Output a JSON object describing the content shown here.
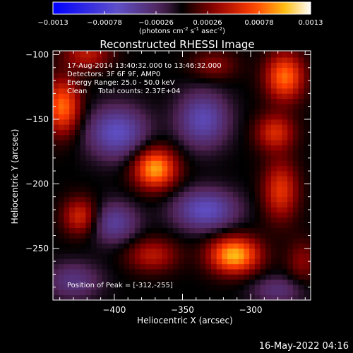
{
  "colorbar": {
    "min": -0.0013,
    "max": 0.0013,
    "tick_labels": [
      "-0.0013",
      "-0.00078",
      "-0.00026",
      "0.00026",
      "0.00078",
      "0.0013"
    ],
    "unit_prefix": "(photons cm",
    "unit_exp1": "-2",
    "unit_mid": " s",
    "unit_exp2": "-1",
    "unit_mid2": " asec",
    "unit_exp3": "-2",
    "unit_suffix": ")"
  },
  "annotations": {
    "line1": "17-Aug-2014 13:40:32.000 to 13:46:32.000",
    "line2": "Detectors: 3F 6F 9F, AMP0",
    "line3": "Energy Range: 25.0 - 50.0 keV",
    "line4": "Clean     Total counts: 2.37E+04",
    "peak": "Position of Peak = [-312,-255]"
  },
  "footer": {
    "timestamp": "16-May-2022 04:16"
  },
  "chart_data": {
    "type": "heatmap",
    "title": "Reconstructed RHESSI Image",
    "xlabel": "Heliocentric X (arcsec)",
    "ylabel": "Heliocentric Y (arcsec)",
    "xlim": [
      -445,
      -256
    ],
    "ylim": [
      -290,
      -97
    ],
    "xticks": [
      -400,
      -350,
      -300
    ],
    "yticks": [
      -100,
      -150,
      -200,
      -250
    ],
    "colormap": "blue-white-red-yellow",
    "peak_position": [
      -312,
      -255
    ],
    "grid_step_arcsec": 4,
    "sources": [
      {
        "kind": "emission",
        "x": -312,
        "y": -255,
        "amp": 1.0,
        "sx": 13,
        "sy": 10
      },
      {
        "kind": "emission",
        "x": -370,
        "y": -188,
        "amp": 0.95,
        "sx": 11,
        "sy": 11
      },
      {
        "kind": "emission",
        "x": -275,
        "y": -117,
        "amp": 0.8,
        "sx": 10,
        "sy": 13
      },
      {
        "kind": "emission",
        "x": -282,
        "y": -160,
        "amp": 0.55,
        "sx": 10,
        "sy": 10
      },
      {
        "kind": "emission",
        "x": -278,
        "y": -205,
        "amp": 0.6,
        "sx": 9,
        "sy": 16
      },
      {
        "kind": "emission",
        "x": -438,
        "y": -140,
        "amp": 0.8,
        "sx": 9,
        "sy": 15
      },
      {
        "kind": "emission",
        "x": -425,
        "y": -225,
        "amp": 0.55,
        "sx": 9,
        "sy": 10
      },
      {
        "kind": "emission",
        "x": -372,
        "y": -255,
        "amp": 0.45,
        "sx": 13,
        "sy": 9
      },
      {
        "kind": "emission",
        "x": -420,
        "y": -100,
        "amp": 0.45,
        "sx": 12,
        "sy": 8
      },
      {
        "kind": "emission",
        "x": -327,
        "y": -108,
        "amp": 0.3,
        "sx": 12,
        "sy": 8
      },
      {
        "kind": "emission",
        "x": -262,
        "y": -260,
        "amp": 0.3,
        "sx": 8,
        "sy": 12
      },
      {
        "kind": "negative",
        "x": -398,
        "y": -160,
        "amp": 0.6,
        "sx": 15,
        "sy": 14
      },
      {
        "kind": "negative",
        "x": -335,
        "y": -150,
        "amp": 0.55,
        "sx": 13,
        "sy": 15
      },
      {
        "kind": "negative",
        "x": -333,
        "y": -220,
        "amp": 0.6,
        "sx": 16,
        "sy": 11
      },
      {
        "kind": "negative",
        "x": -400,
        "y": -230,
        "amp": 0.45,
        "sx": 12,
        "sy": 11
      },
      {
        "kind": "negative",
        "x": -430,
        "y": -275,
        "amp": 0.35,
        "sx": 14,
        "sy": 10
      },
      {
        "kind": "negative",
        "x": -280,
        "y": -282,
        "amp": 0.3,
        "sx": 14,
        "sy": 8
      }
    ]
  }
}
